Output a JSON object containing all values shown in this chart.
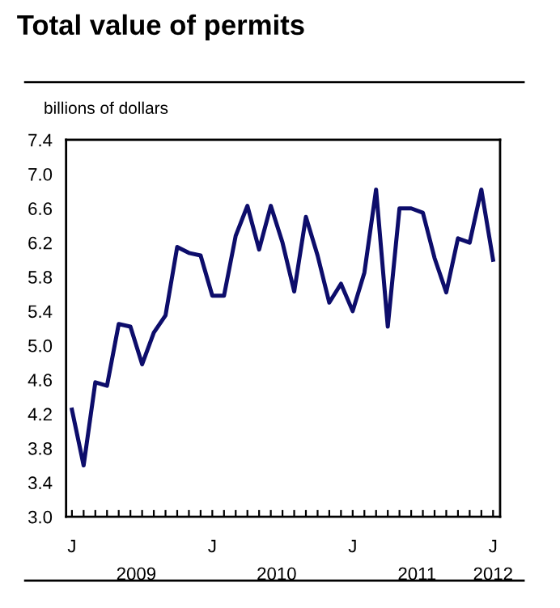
{
  "chart_data": {
    "type": "line",
    "title": "Total value of permits",
    "ylabel": "billions of dollars",
    "categories": [
      "J",
      null,
      null,
      null,
      null,
      null,
      null,
      null,
      null,
      null,
      null,
      null,
      "J",
      null,
      null,
      null,
      null,
      null,
      null,
      null,
      null,
      null,
      null,
      null,
      "J",
      null,
      null,
      null,
      null,
      null,
      null,
      null,
      null,
      null,
      null,
      null,
      "J"
    ],
    "series": [
      {
        "color": "#0d0d6b",
        "values": [
          4.25,
          3.6,
          4.57,
          4.53,
          5.25,
          5.22,
          4.78,
          5.15,
          5.35,
          6.15,
          6.08,
          6.05,
          5.58,
          5.58,
          6.28,
          6.63,
          6.12,
          6.63,
          6.2,
          5.63,
          6.5,
          6.05,
          5.5,
          5.72,
          5.4,
          5.85,
          6.82,
          5.22,
          6.6,
          6.6,
          6.55,
          6.02,
          5.62,
          6.25,
          6.2,
          6.82,
          6.0
        ]
      }
    ],
    "ylim": [
      3.0,
      7.4
    ],
    "yticks": [
      {
        "value": 3.0,
        "label": "3.0"
      },
      3.4,
      3.8,
      4.2,
      4.6,
      {
        "value": 5.0,
        "label": "5.0"
      },
      5.4,
      5.8,
      6.2,
      6.6,
      {
        "value": 7.0,
        "label": "7.0"
      },
      7.4
    ],
    "annotations": [
      "2009",
      "2010",
      "2011",
      "2012"
    ],
    "grid": false,
    "legend": false,
    "marker": "none",
    "line_style": "solid"
  }
}
